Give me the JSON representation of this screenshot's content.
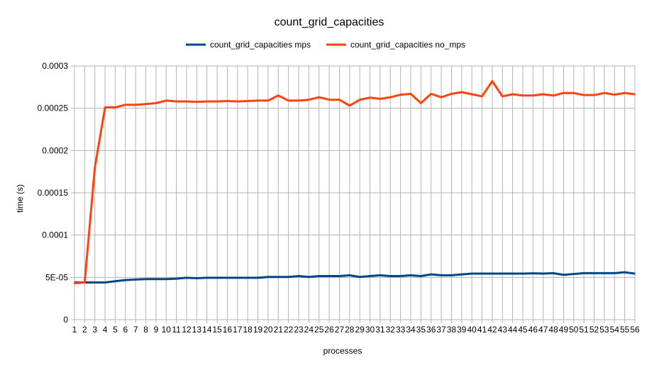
{
  "chart_data": {
    "type": "line",
    "title": "count_grid_capacities",
    "xlabel": "processes",
    "ylabel": "time (s)",
    "ylim": [
      0,
      0.0003
    ],
    "yticks": [
      0,
      5e-05,
      0.0001,
      0.00015,
      0.0002,
      0.00025,
      0.0003
    ],
    "ytick_labels": [
      "0",
      "5E-05",
      "0.0001",
      "0.00015",
      "0.0002",
      "0.00025",
      "0.0003"
    ],
    "legend_position": "top-center",
    "grid": true,
    "x": [
      1,
      2,
      3,
      4,
      5,
      6,
      7,
      8,
      9,
      10,
      11,
      12,
      13,
      14,
      15,
      16,
      17,
      18,
      19,
      20,
      21,
      22,
      23,
      24,
      25,
      26,
      27,
      28,
      29,
      30,
      31,
      32,
      33,
      34,
      35,
      36,
      37,
      38,
      39,
      40,
      41,
      42,
      43,
      44,
      45,
      46,
      47,
      48,
      49,
      50,
      51,
      52,
      53,
      54,
      55,
      56
    ],
    "series": [
      {
        "name": "count_grid_capacities mps",
        "color": "#004586",
        "values": [
          4.4e-05,
          4.4e-05,
          4.4e-05,
          4.4e-05,
          4.55e-05,
          4.68e-05,
          4.75e-05,
          4.8e-05,
          4.8e-05,
          4.8e-05,
          4.85e-05,
          4.95e-05,
          4.9e-05,
          4.95e-05,
          4.95e-05,
          4.95e-05,
          4.95e-05,
          4.95e-05,
          4.95e-05,
          5.05e-05,
          5.05e-05,
          5.05e-05,
          5.15e-05,
          5.05e-05,
          5.15e-05,
          5.15e-05,
          5.15e-05,
          5.25e-05,
          5.05e-05,
          5.15e-05,
          5.25e-05,
          5.15e-05,
          5.15e-05,
          5.25e-05,
          5.15e-05,
          5.35e-05,
          5.25e-05,
          5.25e-05,
          5.35e-05,
          5.45e-05,
          5.45e-05,
          5.45e-05,
          5.45e-05,
          5.45e-05,
          5.45e-05,
          5.48e-05,
          5.45e-05,
          5.5e-05,
          5.3e-05,
          5.4e-05,
          5.5e-05,
          5.5e-05,
          5.5e-05,
          5.5e-05,
          5.6e-05,
          5.45e-05
        ]
      },
      {
        "name": "count_grid_capacities no_mps",
        "color": "#ff420e",
        "values": [
          4.3e-05,
          4.4e-05,
          0.00018,
          0.000251,
          0.000251,
          0.000254,
          0.000254,
          0.000255,
          0.000256,
          0.000259,
          0.000258,
          0.000258,
          0.0002575,
          0.000258,
          0.000258,
          0.0002585,
          0.000258,
          0.0002585,
          0.000259,
          0.000259,
          0.000265,
          0.000259,
          0.000259,
          0.00026,
          0.000263,
          0.00026,
          0.00026,
          0.000253,
          0.00026,
          0.0002625,
          0.000261,
          0.000263,
          0.000266,
          0.000267,
          0.000256,
          0.000267,
          0.000263,
          0.000267,
          0.000269,
          0.0002665,
          0.000264,
          0.000282,
          0.000264,
          0.0002665,
          0.000265,
          0.000265,
          0.0002665,
          0.000265,
          0.000268,
          0.000268,
          0.0002655,
          0.0002655,
          0.000268,
          0.000266,
          0.000268,
          0.0002665
        ]
      }
    ]
  }
}
